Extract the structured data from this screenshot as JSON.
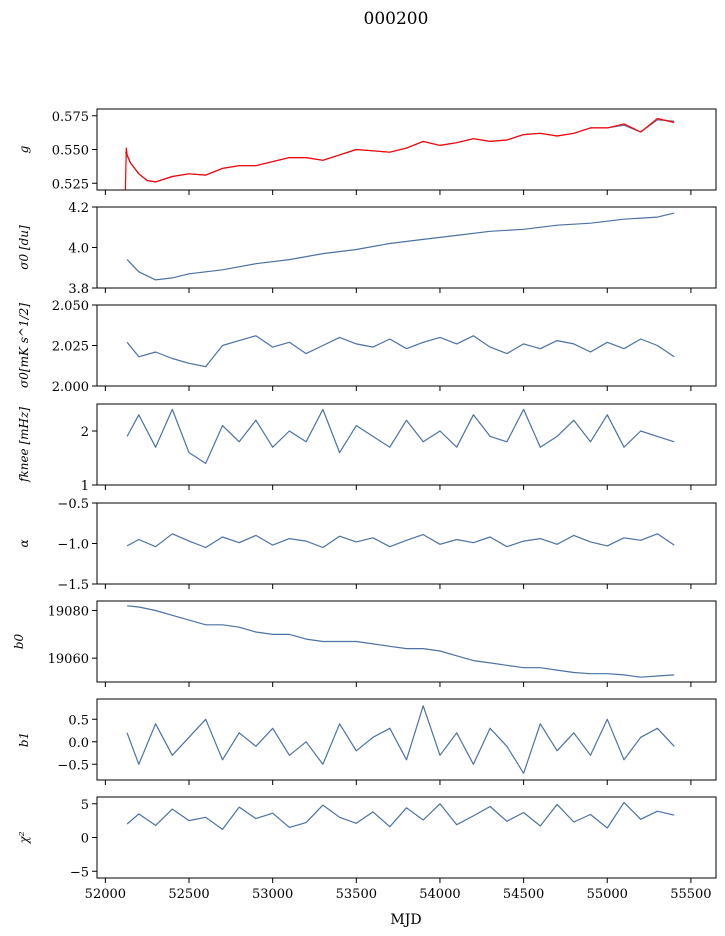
{
  "figure": {
    "title": "000200",
    "xlabel": "MJD",
    "xlim": [
      51950,
      55650
    ],
    "xticks": [
      52000,
      52500,
      53000,
      53500,
      54000,
      54500,
      55000,
      55500
    ],
    "colors": {
      "series": "#4c72a4",
      "overlay": "#ff0000",
      "axes": "#000000"
    }
  },
  "chart_data": [
    {
      "type": "line",
      "ylabel": "g",
      "ylim": [
        0.52,
        0.58
      ],
      "yticks": [
        0.525,
        0.55,
        0.575
      ],
      "ytick_labels": [
        "0.525",
        "0.550",
        "0.575"
      ],
      "series": [
        {
          "color": "#4c72a4",
          "x": [
            52120,
            52150,
            52200,
            52250,
            52300,
            52400,
            52500,
            52600,
            52700,
            52800,
            52900,
            53000,
            53100,
            53200,
            53300,
            53400,
            53500,
            53600,
            53700,
            53800,
            53900,
            54000,
            54100,
            54200,
            54300,
            54400,
            54500,
            54600,
            54700,
            54800,
            54900,
            55000,
            55100,
            55200,
            55300,
            55400
          ],
          "y": [
            0.548,
            0.54,
            0.532,
            0.527,
            0.526,
            0.53,
            0.532,
            0.531,
            0.536,
            0.538,
            0.538,
            0.541,
            0.544,
            0.544,
            0.542,
            0.546,
            0.55,
            0.549,
            0.548,
            0.551,
            0.556,
            0.553,
            0.555,
            0.558,
            0.556,
            0.557,
            0.561,
            0.562,
            0.56,
            0.562,
            0.566,
            0.566,
            0.568,
            0.563,
            0.572,
            0.571
          ]
        },
        {
          "color": "#ff0000",
          "x": [
            52120,
            52125,
            52130,
            52150,
            52200,
            52250,
            52300,
            52400,
            52500,
            52600,
            52700,
            52800,
            52900,
            53000,
            53100,
            53200,
            53300,
            53400,
            53500,
            53600,
            53700,
            53800,
            53900,
            54000,
            54100,
            54200,
            54300,
            54400,
            54500,
            54600,
            54700,
            54800,
            54900,
            55000,
            55100,
            55200,
            55300,
            55400
          ],
          "y": [
            0.52,
            0.551,
            0.546,
            0.54,
            0.532,
            0.527,
            0.526,
            0.53,
            0.532,
            0.531,
            0.536,
            0.538,
            0.538,
            0.541,
            0.544,
            0.544,
            0.542,
            0.546,
            0.55,
            0.549,
            0.548,
            0.551,
            0.556,
            0.553,
            0.555,
            0.558,
            0.556,
            0.557,
            0.561,
            0.562,
            0.56,
            0.562,
            0.566,
            0.566,
            0.569,
            0.563,
            0.573,
            0.57
          ]
        }
      ]
    },
    {
      "type": "line",
      "ylabel": "σ0 [du]",
      "ylim": [
        3.8,
        4.2
      ],
      "yticks": [
        3.8,
        4.0,
        4.2
      ],
      "ytick_labels": [
        "3.8",
        "4.0",
        "4.2"
      ],
      "series": [
        {
          "color": "#4c72a4",
          "x": [
            52130,
            52200,
            52300,
            52400,
            52500,
            52700,
            52900,
            53100,
            53300,
            53500,
            53700,
            53900,
            54100,
            54300,
            54500,
            54700,
            54900,
            55100,
            55300,
            55400
          ],
          "y": [
            3.94,
            3.88,
            3.84,
            3.85,
            3.87,
            3.89,
            3.92,
            3.94,
            3.97,
            3.99,
            4.02,
            4.04,
            4.06,
            4.08,
            4.09,
            4.11,
            4.12,
            4.14,
            4.15,
            4.17
          ]
        }
      ]
    },
    {
      "type": "line",
      "ylabel": "σ0[mK s^1/2]",
      "ylim": [
        2.0,
        2.05
      ],
      "yticks": [
        2.0,
        2.025,
        2.05
      ],
      "ytick_labels": [
        "2.000",
        "2.025",
        "2.050"
      ],
      "series": [
        {
          "color": "#4c72a4",
          "x": [
            52130,
            52200,
            52300,
            52400,
            52500,
            52600,
            52700,
            52800,
            52900,
            53000,
            53100,
            53200,
            53300,
            53400,
            53500,
            53600,
            53700,
            53800,
            53900,
            54000,
            54100,
            54200,
            54300,
            54400,
            54500,
            54600,
            54700,
            54800,
            54900,
            55000,
            55100,
            55200,
            55300,
            55400
          ],
          "y": [
            2.027,
            2.018,
            2.021,
            2.017,
            2.014,
            2.012,
            2.025,
            2.028,
            2.031,
            2.024,
            2.027,
            2.02,
            2.025,
            2.03,
            2.026,
            2.024,
            2.029,
            2.023,
            2.027,
            2.03,
            2.026,
            2.031,
            2.024,
            2.02,
            2.026,
            2.023,
            2.028,
            2.026,
            2.021,
            2.027,
            2.023,
            2.029,
            2.025,
            2.018
          ]
        }
      ]
    },
    {
      "type": "line",
      "ylabel": "fknee [mHz]",
      "ylim": [
        1,
        2.5
      ],
      "yticks": [
        1,
        2
      ],
      "ytick_labels": [
        "1",
        "2"
      ],
      "series": [
        {
          "color": "#4c72a4",
          "x": [
            52130,
            52200,
            52300,
            52400,
            52500,
            52600,
            52700,
            52800,
            52900,
            53000,
            53100,
            53200,
            53300,
            53400,
            53500,
            53600,
            53700,
            53800,
            53900,
            54000,
            54100,
            54200,
            54300,
            54400,
            54500,
            54600,
            54700,
            54800,
            54900,
            55000,
            55100,
            55200,
            55300,
            55400
          ],
          "y": [
            1.9,
            2.3,
            1.7,
            2.4,
            1.6,
            1.4,
            2.1,
            1.8,
            2.2,
            1.7,
            2.0,
            1.8,
            2.4,
            1.6,
            2.1,
            1.9,
            1.7,
            2.2,
            1.8,
            2.0,
            1.7,
            2.3,
            1.9,
            1.8,
            2.4,
            1.7,
            1.9,
            2.2,
            1.8,
            2.3,
            1.7,
            2.0,
            1.9,
            1.8
          ]
        }
      ]
    },
    {
      "type": "line",
      "ylabel": "α",
      "ylim": [
        -1.5,
        -0.5
      ],
      "yticks": [
        -1.5,
        -1.0,
        -0.5
      ],
      "ytick_labels": [
        "−1.5",
        "−1.0",
        "−0.5"
      ],
      "series": [
        {
          "color": "#4c72a4",
          "x": [
            52130,
            52200,
            52300,
            52400,
            52500,
            52600,
            52700,
            52800,
            52900,
            53000,
            53100,
            53200,
            53300,
            53400,
            53500,
            53600,
            53700,
            53800,
            53900,
            54000,
            54100,
            54200,
            54300,
            54400,
            54500,
            54600,
            54700,
            54800,
            54900,
            55000,
            55100,
            55200,
            55300,
            55400
          ],
          "y": [
            -1.03,
            -0.95,
            -1.04,
            -0.88,
            -0.97,
            -1.05,
            -0.92,
            -0.99,
            -0.9,
            -1.02,
            -0.94,
            -0.97,
            -1.05,
            -0.91,
            -0.98,
            -0.93,
            -1.04,
            -0.96,
            -0.89,
            -1.01,
            -0.95,
            -0.99,
            -0.92,
            -1.04,
            -0.97,
            -0.94,
            -1.01,
            -0.9,
            -0.98,
            -1.03,
            -0.93,
            -0.96,
            -0.88,
            -1.02
          ]
        }
      ]
    },
    {
      "type": "line",
      "ylabel": "b0",
      "ylim": [
        19050,
        19084
      ],
      "yticks": [
        19060,
        19080
      ],
      "ytick_labels": [
        "19060",
        "19080"
      ],
      "series": [
        {
          "color": "#4c72a4",
          "x": [
            52130,
            52200,
            52300,
            52400,
            52500,
            52600,
            52700,
            52800,
            52900,
            53000,
            53100,
            53200,
            53300,
            53400,
            53500,
            53600,
            53700,
            53800,
            53900,
            54000,
            54100,
            54200,
            54300,
            54400,
            54500,
            54600,
            54700,
            54800,
            54900,
            55000,
            55100,
            55200,
            55300,
            55400
          ],
          "y": [
            19082,
            19081.5,
            19080,
            19078,
            19076,
            19074,
            19074,
            19073,
            19071,
            19070,
            19070,
            19068,
            19067,
            19067,
            19067,
            19066,
            19065,
            19064,
            19064,
            19063,
            19061,
            19059,
            19058,
            19057,
            19056,
            19056,
            19055,
            19054,
            19053.5,
            19053.5,
            19053,
            19052,
            19052.5,
            19053
          ]
        }
      ]
    },
    {
      "type": "line",
      "ylabel": "b1",
      "ylim": [
        -0.85,
        0.95
      ],
      "yticks": [
        -0.5,
        0.0,
        0.5
      ],
      "ytick_labels": [
        "−0.5",
        "0.0",
        "0.5"
      ],
      "series": [
        {
          "color": "#4c72a4",
          "x": [
            52130,
            52200,
            52300,
            52400,
            52500,
            52600,
            52700,
            52800,
            52900,
            53000,
            53100,
            53200,
            53300,
            53400,
            53500,
            53600,
            53700,
            53800,
            53900,
            54000,
            54100,
            54200,
            54300,
            54400,
            54500,
            54600,
            54700,
            54800,
            54900,
            55000,
            55100,
            55200,
            55300,
            55400
          ],
          "y": [
            0.2,
            -0.5,
            0.4,
            -0.3,
            0.1,
            0.5,
            -0.4,
            0.2,
            -0.1,
            0.3,
            -0.3,
            0.0,
            -0.5,
            0.4,
            -0.2,
            0.1,
            0.3,
            -0.4,
            0.8,
            -0.3,
            0.2,
            -0.5,
            0.3,
            -0.1,
            -0.7,
            0.4,
            -0.2,
            0.2,
            -0.3,
            0.5,
            -0.4,
            0.1,
            0.3,
            -0.1
          ]
        }
      ]
    },
    {
      "type": "line",
      "ylabel": "χ²",
      "ylim": [
        -6,
        6
      ],
      "yticks": [
        -5,
        0,
        5
      ],
      "ytick_labels": [
        "−5",
        "0",
        "5"
      ],
      "series": [
        {
          "color": "#4c72a4",
          "x": [
            52130,
            52200,
            52300,
            52400,
            52500,
            52600,
            52700,
            52800,
            52900,
            53000,
            53100,
            53200,
            53300,
            53400,
            53500,
            53600,
            53700,
            53800,
            53900,
            54000,
            54100,
            54200,
            54300,
            54400,
            54500,
            54600,
            54700,
            54800,
            54900,
            55000,
            55100,
            55200,
            55300,
            55400
          ],
          "y": [
            2.0,
            3.5,
            1.8,
            4.2,
            2.5,
            3.0,
            1.2,
            4.5,
            2.8,
            3.6,
            1.5,
            2.2,
            4.8,
            3.0,
            2.1,
            3.8,
            1.6,
            4.4,
            2.6,
            5.0,
            1.9,
            3.2,
            4.6,
            2.4,
            3.7,
            1.7,
            4.9,
            2.3,
            3.4,
            1.4,
            5.2,
            2.7,
            3.9,
            3.3
          ]
        }
      ]
    }
  ]
}
